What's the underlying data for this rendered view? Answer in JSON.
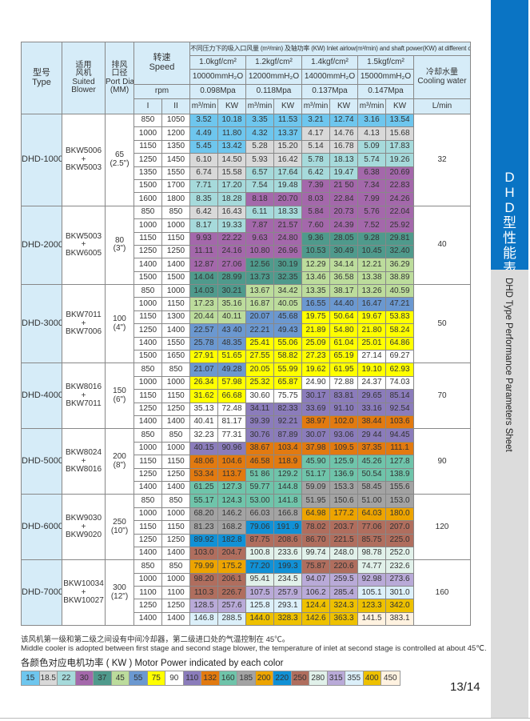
{
  "sidebar": {
    "title_cn": [
      "D",
      "H",
      "D",
      "型",
      "性",
      "能",
      "表"
    ],
    "title_en": "DHD Type Performance Parameters Sheet"
  },
  "header": {
    "type_cn": "型号",
    "type_en": "Type",
    "blower_cn1": "适用",
    "blower_cn2": "风机",
    "blower_en1": "Suited",
    "blower_en2": "Blower",
    "port_cn1": "排风",
    "port_cn2": "口径",
    "port_en1": "Port Dia",
    "port_en2": "(MM)",
    "speed_cn": "转速",
    "speed_en": "Speed",
    "conditions": "不同压力下的吸入口风量 (m³/min) 及轴功率 (KW) Inlet airlow(m³/min) and shaft power(KW) at different conditions",
    "pressures_kgf": [
      "1.0kgf/cm²",
      "1.2kgf/cm²",
      "1.4kgf/cm²",
      "1.5kgf/cm²"
    ],
    "pressures_mmh2o": [
      "10000mmH₂O",
      "12000mmH₂O",
      "14000mmH₂O",
      "15000mmH₂O"
    ],
    "pressures_mpa": [
      "0.098Mpa",
      "0.118Mpa",
      "0.137Mpa",
      "0.147Mpa"
    ],
    "cooling_cn": "冷却水量",
    "cooling_en": "Cooling water",
    "rpm": "rpm",
    "stage_i": "I",
    "stage_ii": "II",
    "flow_unit": "m³/min",
    "power_unit": "KW",
    "cooling_unit": "L/min"
  },
  "models": [
    {
      "type": "DHD-1000",
      "blower": [
        "BKW5006",
        "+",
        "BKW5003"
      ],
      "port": [
        "65",
        "(2.5\")"
      ],
      "cooling": "32",
      "rows": [
        {
          "i": "850",
          "ii": "1050",
          "v": [
            "3.52",
            "10.18",
            "3.35",
            "11.53",
            "3.21",
            "12.74",
            "3.16",
            "13.54"
          ],
          "p": [
            "15",
            "15",
            "15",
            "15"
          ]
        },
        {
          "i": "1000",
          "ii": "1200",
          "v": [
            "4.49",
            "11.80",
            "4.32",
            "13.37",
            "4.17",
            "14.76",
            "4.13",
            "15.68"
          ],
          "p": [
            "15",
            "15",
            "18.5",
            "18.5"
          ]
        },
        {
          "i": "1150",
          "ii": "1350",
          "v": [
            "5.45",
            "13.42",
            "5.28",
            "15.20",
            "5.14",
            "16.78",
            "5.09",
            "17.83"
          ],
          "p": [
            "15",
            "18.5",
            "18.5",
            "22"
          ]
        },
        {
          "i": "1250",
          "ii": "1450",
          "v": [
            "6.10",
            "14.50",
            "5.93",
            "16.42",
            "5.78",
            "18.13",
            "5.74",
            "19.26"
          ],
          "p": [
            "18.5",
            "18.5",
            "22",
            "22"
          ]
        },
        {
          "i": "1350",
          "ii": "1550",
          "v": [
            "6.74",
            "15.58",
            "6.57",
            "17.64",
            "6.42",
            "19.47",
            "6.38",
            "20.69"
          ],
          "p": [
            "18.5",
            "22",
            "22",
            "30"
          ]
        },
        {
          "i": "1500",
          "ii": "1700",
          "v": [
            "7.71",
            "17.20",
            "7.54",
            "19.48",
            "7.39",
            "21 50",
            "7.34",
            "22.83"
          ],
          "p": [
            "22",
            "22",
            "30",
            "30"
          ]
        },
        {
          "i": "1600",
          "ii": "1800",
          "v": [
            "8.35",
            "18.28",
            "8.18",
            "20.70",
            "8.03",
            "22.84",
            "7.99",
            "24.26"
          ],
          "p": [
            "22",
            "30",
            "30",
            "30"
          ]
        }
      ]
    },
    {
      "type": "DHD-2000",
      "blower": [
        "BKW5003",
        "+",
        "BKW6005"
      ],
      "port": [
        "80",
        "(3\")"
      ],
      "cooling": "40",
      "rows": [
        {
          "i": "850",
          "ii": "850",
          "v": [
            "6.42",
            "16.43",
            "6.11",
            "18.33",
            "5.84",
            "20.73",
            "5.76",
            "22.04"
          ],
          "p": [
            "18.5",
            "22",
            "30",
            "30"
          ]
        },
        {
          "i": "1000",
          "ii": "1000",
          "v": [
            "8.17",
            "19.33",
            "7.87",
            "21.57",
            "7.60",
            "24.39",
            "7.52",
            "25.92"
          ],
          "p": [
            "22",
            "30",
            "30",
            "30"
          ]
        },
        {
          "i": "1150",
          "ii": "1150",
          "v": [
            "9.93",
            "22.22",
            "9.63",
            "24.80",
            "9.36",
            "28.05",
            "9.28",
            "29.81"
          ],
          "p": [
            "30",
            "30",
            "37",
            "37"
          ]
        },
        {
          "i": "1250",
          "ii": "1250",
          "v": [
            "11.11",
            "24.16",
            "10.80",
            "26.96",
            "10.53",
            "30.49",
            "10.45",
            "32.40"
          ],
          "p": [
            "30",
            "30",
            "37",
            "37"
          ]
        },
        {
          "i": "1400",
          "ii": "1400",
          "v": [
            "12.87",
            "27.06",
            "12.56",
            "30.19",
            "12.29",
            "34.14",
            "12.21",
            "36.29"
          ],
          "p": [
            "30",
            "37",
            "45",
            "45"
          ]
        },
        {
          "i": "1500",
          "ii": "1500",
          "v": [
            "14.04",
            "28.99",
            "13.73",
            "32.35",
            "13.46",
            "36.58",
            "13.38",
            "38.89"
          ],
          "p": [
            "37",
            "37",
            "45",
            "45"
          ]
        }
      ]
    },
    {
      "type": "DHD-3000",
      "blower": [
        "BKW7011",
        "+",
        "BKW7006"
      ],
      "port": [
        "100",
        "(4\")"
      ],
      "cooling": "50",
      "rows": [
        {
          "i": "850",
          "ii": "1000",
          "v": [
            "14.03",
            "30.21",
            "13.67",
            "34.42",
            "13.35",
            "38.17",
            "13.26",
            "40.59"
          ],
          "p": [
            "37",
            "45",
            "45",
            "45"
          ]
        },
        {
          "i": "1000",
          "ii": "1150",
          "v": [
            "17.23",
            "35.16",
            "16.87",
            "40.05",
            "16.55",
            "44.40",
            "16.47",
            "47.21"
          ],
          "p": [
            "45",
            "45",
            "55",
            "55"
          ]
        },
        {
          "i": "1150",
          "ii": "1300",
          "v": [
            "20.44",
            "40.11",
            "20.07",
            "45.68",
            "19.75",
            "50.64",
            "19.67",
            "53.83"
          ],
          "p": [
            "45",
            "55",
            "75",
            "75"
          ]
        },
        {
          "i": "1250",
          "ii": "1400",
          "v": [
            "22.57",
            "43 40",
            "22.21",
            "49.43",
            "21.89",
            "54.80",
            "21.80",
            "58.24"
          ],
          "p": [
            "55",
            "55",
            "75",
            "75"
          ]
        },
        {
          "i": "1400",
          "ii": "1550",
          "v": [
            "25.78",
            "48.35",
            "25.41",
            "55.06",
            "25.09",
            "61.04",
            "25.01",
            "64.86"
          ],
          "p": [
            "55",
            "75",
            "75",
            "75"
          ]
        },
        {
          "i": "1500",
          "ii": "1650",
          "v": [
            "27.91",
            "51.65",
            "27.55",
            "58.82",
            "27.23",
            "65.19",
            "27.14",
            "69.27"
          ],
          "p": [
            "75",
            "75",
            "75",
            "90"
          ]
        }
      ]
    },
    {
      "type": "DHD-4000",
      "blower": [
        "BKW8016",
        "+",
        "BKW7011"
      ],
      "port": [
        "150",
        "(6\")"
      ],
      "cooling": "70",
      "rows": [
        {
          "i": "850",
          "ii": "850",
          "v": [
            "21.07",
            "49.28",
            "20.05",
            "55.99",
            "19.62",
            "61.95",
            "19.10",
            "62.93"
          ],
          "p": [
            "55",
            "75",
            "75",
            "75"
          ]
        },
        {
          "i": "1000",
          "ii": "1000",
          "v": [
            "26.34",
            "57.98",
            "25.32",
            "65.87",
            "24.90",
            "72.88",
            "24.37",
            "74.03"
          ],
          "p": [
            "75",
            "75",
            "90",
            "90"
          ]
        },
        {
          "i": "1150",
          "ii": "1150",
          "v": [
            "31.62",
            "66.68",
            "30.60",
            "75.75",
            "30.17",
            "83.81",
            "29.65",
            "85.14"
          ],
          "p": [
            "75",
            "90",
            "110",
            "110"
          ]
        },
        {
          "i": "1250",
          "ii": "1250",
          "v": [
            "35.13",
            "72.48",
            "34.11",
            "82.33",
            "33.69",
            "91.10",
            "33.16",
            "92.54"
          ],
          "p": [
            "90",
            "110",
            "110",
            "110"
          ]
        },
        {
          "i": "1400",
          "ii": "1400",
          "v": [
            "40.41",
            "81.17",
            "39.39",
            "92.21",
            "38.97",
            "102.0",
            "38.44",
            "103.6"
          ],
          "p": [
            "90",
            "110",
            "132",
            "132"
          ]
        }
      ]
    },
    {
      "type": "DHD-5000",
      "blower": [
        "BKW8024",
        "+",
        "BKW8016"
      ],
      "port": [
        "200",
        "(8\")"
      ],
      "cooling": "90",
      "rows": [
        {
          "i": "850",
          "ii": "850",
          "v": [
            "32.23",
            "77.31",
            "30.76",
            "87.89",
            "30.07",
            "93.06",
            "29 44",
            "94.45"
          ],
          "p": [
            "90",
            "110",
            "110",
            "110"
          ]
        },
        {
          "i": "1000",
          "ii": "1000",
          "v": [
            "40.15",
            "90.96",
            "38.67",
            "103.4",
            "37.98",
            "109.5",
            "37.35",
            "111.1"
          ],
          "p": [
            "110",
            "132",
            "132",
            "132"
          ]
        },
        {
          "i": "1150",
          "ii": "1150",
          "v": [
            "48.06",
            "104.6",
            "46.58",
            "118.9",
            "45.90",
            "125.9",
            "45.26",
            "127.8"
          ],
          "p": [
            "132",
            "132",
            "160",
            "160"
          ]
        },
        {
          "i": "1250",
          "ii": "1250",
          "v": [
            "53.34",
            "113.7",
            "51 86",
            "129.2",
            "51.17",
            "136.9",
            "50.54",
            "138.9"
          ],
          "p": [
            "132",
            "160",
            "160",
            "160"
          ]
        },
        {
          "i": "1400",
          "ii": "1400",
          "v": [
            "61.25",
            "127.3",
            "59.77",
            "144.8",
            "59.09",
            "153.3",
            "58.45",
            "155.6"
          ],
          "p": [
            "160",
            "160",
            "185",
            "185"
          ]
        }
      ]
    },
    {
      "type": "DHD-6000",
      "blower": [
        "BKW9030",
        "+",
        "BKW9020"
      ],
      "port": [
        "250",
        "(10\")"
      ],
      "cooling": "120",
      "rows": [
        {
          "i": "850",
          "ii": "850",
          "v": [
            "55.17",
            "124.3",
            "53.00",
            "141.8",
            "51.95",
            "150.6",
            "51.00",
            "153.0"
          ],
          "p": [
            "160",
            "160",
            "185",
            "185"
          ]
        },
        {
          "i": "1000",
          "ii": "1000",
          "v": [
            "68.20",
            "146.2",
            "66.03",
            "166.8",
            "64.98",
            "177.2",
            "64.03",
            "180.0"
          ],
          "p": [
            "185",
            "185",
            "200",
            "200"
          ]
        },
        {
          "i": "1150",
          "ii": "1150",
          "v": [
            "81.23",
            "168.2",
            "79.06",
            "191 .9",
            "78.02",
            "203.7",
            "77.06",
            "207.0"
          ],
          "p": [
            "185",
            "220",
            "250",
            "250"
          ]
        },
        {
          "i": "1250",
          "ii": "1250",
          "v": [
            "89.92",
            "182.8",
            "87.75",
            "208.6",
            "86.70",
            "221.5",
            "85.75",
            "225.0"
          ],
          "p": [
            "220",
            "250",
            "250",
            "250"
          ]
        },
        {
          "i": "1400",
          "ii": "1400",
          "v": [
            "103.0",
            "204.7",
            "100.8",
            "233.6",
            "99.74",
            "248.0",
            "98.78",
            "252.0"
          ],
          "p": [
            "250",
            "280",
            "280",
            "280"
          ]
        }
      ]
    },
    {
      "type": "DHD-7000",
      "blower": [
        "BKW10034",
        "+",
        "BKW10027"
      ],
      "port": [
        "300",
        "(12\")"
      ],
      "cooling": "160",
      "rows": [
        {
          "i": "850",
          "ii": "850",
          "v": [
            "79.99",
            "175.2",
            "77.20",
            "199.3",
            "75.87",
            "220.6",
            "74.77",
            "232.6"
          ],
          "p": [
            "200",
            "220",
            "250",
            "280"
          ]
        },
        {
          "i": "1000",
          "ii": "1000",
          "v": [
            "98.20",
            "206.1",
            "95.41",
            "234.5",
            "94.07",
            "259.5",
            "92.98",
            "273.6"
          ],
          "p": [
            "250",
            "280",
            "315",
            "315"
          ]
        },
        {
          "i": "1100",
          "ii": "1100",
          "v": [
            "110.3",
            "226.7",
            "107.5",
            "257.9",
            "106.2",
            "285.4",
            "105.1",
            "301.0"
          ],
          "p": [
            "250",
            "315",
            "315",
            "355"
          ]
        },
        {
          "i": "1250",
          "ii": "1250",
          "v": [
            "128.5",
            "257.6",
            "125.8",
            "293.1",
            "124.4",
            "324.3",
            "123.3",
            "342.0"
          ],
          "p": [
            "315",
            "355",
            "400",
            "400"
          ]
        },
        {
          "i": "1400",
          "ii": "1400",
          "v": [
            "146.8",
            "288.5",
            "144.0",
            "328.3",
            "142.6",
            "363.3",
            "141.5",
            "383.1"
          ],
          "p": [
            "355",
            "400",
            "400",
            "450"
          ]
        }
      ]
    }
  ],
  "notes": {
    "cn": "该风机第一级和第二级之间设有中间冷却器，第二级进口处的气温控制在 45℃。",
    "en": "Middle cooler is adopted between first stage and second stage blower, the temperature of inlet at second stage is controlled at about 45℃."
  },
  "legend": {
    "title": "各颜色对应电机功率 ( KW ) Motor Power indicated by each color",
    "items": [
      {
        "kw": "15",
        "color": "#6ec6ee"
      },
      {
        "kw": "18.5",
        "color": "#d9d9d9"
      },
      {
        "kw": "22",
        "color": "#a6dadb"
      },
      {
        "kw": "30",
        "color": "#a468ab"
      },
      {
        "kw": "37",
        "color": "#4f9a8c"
      },
      {
        "kw": "45",
        "color": "#bcdc9c"
      },
      {
        "kw": "55",
        "color": "#6b98d0"
      },
      {
        "kw": "75",
        "color": "#ffff00"
      },
      {
        "kw": "90",
        "color": "#ffffff"
      },
      {
        "kw": "110",
        "color": "#8b7cbb"
      },
      {
        "kw": "132",
        "color": "#e27a10"
      },
      {
        "kw": "160",
        "color": "#6fc4aa"
      },
      {
        "kw": "185",
        "color": "#a3a3a3"
      },
      {
        "kw": "200",
        "color": "#eda400"
      },
      {
        "kw": "220",
        "color": "#1191d6"
      },
      {
        "kw": "250",
        "color": "#b06e5e"
      },
      {
        "kw": "280",
        "color": "#e1f1ea"
      },
      {
        "kw": "315",
        "color": "#b9aad8"
      },
      {
        "kw": "355",
        "color": "#dcf0fa"
      },
      {
        "kw": "400",
        "color": "#eec100"
      },
      {
        "kw": "450",
        "color": "#fff2e0"
      }
    ]
  },
  "page_number": "13/14"
}
